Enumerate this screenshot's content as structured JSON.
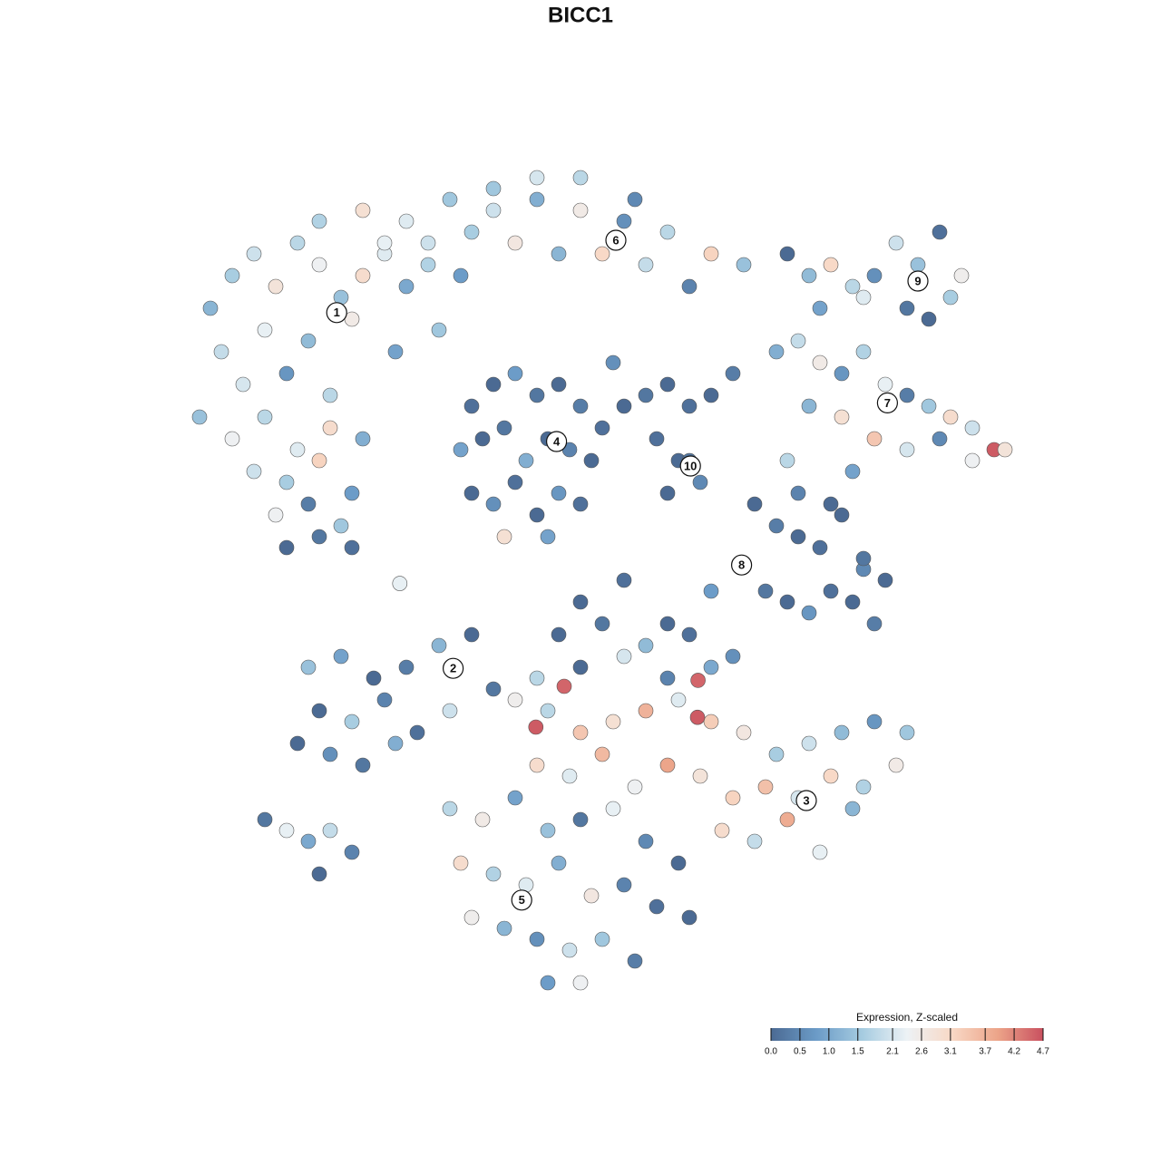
{
  "chart_data": {
    "type": "scatter",
    "title": "BICC1",
    "xlim": [
      -45,
      45
    ],
    "ylim": [
      -45,
      45
    ],
    "series": [
      {
        "x": [
          -34,
          -32,
          -30,
          -28,
          -26,
          -24,
          -22,
          -20,
          -18,
          -16,
          -14,
          -33,
          -29,
          -25,
          -21,
          -17,
          -13,
          -31,
          -27,
          -23,
          -24,
          -20,
          -16,
          -12,
          -8,
          -4,
          0,
          4,
          8,
          12,
          15,
          -18,
          -14,
          -10,
          -6,
          -2,
          2,
          6,
          10,
          -8,
          -4,
          0,
          5,
          -11,
          -35,
          -32,
          -29,
          -26,
          -23,
          -20,
          -30,
          -27,
          -24,
          -21,
          -28,
          -25,
          -22,
          -27,
          -24,
          -21,
          -10,
          -8,
          -6,
          -4,
          -2,
          0,
          2,
          -11,
          -9,
          -7,
          -5,
          -3,
          -1,
          1,
          -10,
          -8,
          -6,
          -4,
          -2,
          0,
          -7,
          -3,
          4,
          6,
          8,
          10,
          12,
          14,
          7,
          9,
          11,
          8,
          10,
          3,
          19,
          21,
          23,
          25,
          27,
          29,
          31,
          33,
          35,
          22,
          26,
          30,
          34,
          32,
          18,
          20,
          22,
          24,
          26,
          28,
          30,
          32,
          34,
          36,
          38,
          39,
          21,
          24,
          27,
          30,
          33,
          36,
          19,
          25,
          16,
          18,
          20,
          22,
          24,
          26,
          28,
          17,
          19,
          21,
          23,
          25,
          27,
          20,
          23,
          26,
          0,
          4,
          8,
          12,
          -2,
          2,
          6,
          10,
          14,
          -4,
          0,
          4,
          8,
          12,
          -25,
          -22,
          -19,
          -16,
          -13,
          -10,
          -8,
          -24,
          -21,
          -18,
          -15,
          -12,
          -26,
          -23,
          -20,
          -17,
          -6,
          -3,
          0,
          3,
          6,
          9,
          12,
          15,
          18,
          21,
          24,
          27,
          30,
          -4,
          -1,
          2,
          5,
          8,
          11,
          14,
          17,
          20,
          23,
          26,
          29,
          13,
          16,
          19,
          22,
          25,
          -1.5,
          -4.1,
          10.8,
          10.75,
          -12,
          -9,
          -6,
          -3,
          0,
          3,
          6,
          9,
          -11,
          -8,
          -5,
          -2,
          1,
          4,
          7,
          10,
          -10,
          -7,
          -4,
          -1,
          2,
          5,
          -3,
          0,
          -29,
          -27,
          -25,
          -23,
          -21,
          -24,
          -16.6
        ],
        "y": [
          25,
          28,
          30,
          27,
          31,
          29,
          26,
          28,
          30,
          27,
          29,
          21,
          23,
          22,
          24,
          21,
          23,
          18,
          19,
          17,
          33,
          34,
          33,
          35,
          34,
          35,
          34,
          33,
          32,
          30,
          29,
          31,
          31,
          32,
          31,
          30,
          30,
          29,
          27,
          36,
          37,
          37,
          35,
          28,
          15,
          13,
          15,
          12,
          14,
          13,
          10,
          9,
          11,
          8,
          6,
          7,
          5,
          3,
          4,
          3,
          16,
          18,
          19,
          17,
          18,
          16,
          14,
          12,
          13,
          14,
          11,
          13,
          12,
          11,
          8,
          7,
          9,
          6,
          8,
          7,
          4,
          4,
          16,
          17,
          18,
          16,
          17,
          19,
          13,
          11,
          9,
          8,
          11,
          20,
          30,
          28,
          29,
          27,
          28,
          31,
          29,
          32,
          28,
          25,
          26,
          25,
          26,
          24,
          21,
          22,
          20,
          19,
          21,
          18,
          17,
          16,
          15,
          14,
          12,
          12,
          16,
          15,
          13,
          12,
          13,
          11,
          11,
          10,
          7,
          5,
          4,
          3,
          6,
          1,
          0,
          -1,
          -2,
          -3,
          -1,
          -2,
          -4,
          8,
          7,
          2,
          -2,
          0,
          -4,
          -1,
          -5,
          -4,
          -6,
          -5,
          -7,
          -9,
          -8,
          -7,
          -9,
          -8,
          -8,
          -7,
          -9,
          -8,
          -6,
          -5,
          -10,
          -12,
          -13,
          -11,
          -14,
          -12,
          -15,
          -16,
          -17,
          -15,
          -11,
          -12,
          -14,
          -13,
          -12,
          -11,
          -13,
          -14,
          -16,
          -15,
          -14,
          -13,
          -14,
          -17,
          -18,
          -16,
          -19,
          -17,
          -18,
          -20,
          -19,
          -20,
          -18,
          -19,
          -17,
          -23,
          -24,
          -22,
          -25,
          -21,
          -9.75,
          -13.5,
          -9.2,
          -12.6,
          -21,
          -22,
          -20,
          -23,
          -22,
          -21,
          -24,
          -26,
          -26,
          -27,
          -28,
          -26,
          -29,
          -28,
          -30,
          -31,
          -31,
          -32,
          -33,
          -34,
          -33,
          -35,
          -37,
          -37,
          -22,
          -23,
          -24,
          -23,
          -25,
          -27,
          -0.3
        ],
        "values": [
          1.2,
          1.6,
          2.0,
          2.8,
          1.8,
          2.4,
          1.4,
          3.0,
          2.2,
          1.0,
          1.7,
          1.9,
          2.3,
          1.3,
          2.6,
          0.9,
          1.5,
          2.1,
          0.7,
          1.8,
          1.7,
          2.9,
          2.2,
          1.5,
          2.0,
          1.1,
          2.6,
          0.6,
          1.8,
          3.2,
          1.4,
          2.3,
          2.0,
          1.6,
          2.7,
          1.2,
          3.1,
          1.9,
          0.4,
          1.5,
          2.1,
          1.8,
          0.5,
          0.8,
          1.4,
          2.4,
          1.8,
          2.2,
          3.0,
          1.1,
          2.0,
          1.6,
          3.2,
          0.8,
          2.4,
          0.3,
          1.5,
          0.0,
          0.2,
          0.1,
          0.1,
          0.0,
          0.8,
          0.2,
          0.0,
          0.3,
          0.1,
          0.9,
          0.0,
          0.2,
          1.1,
          0.0,
          0.4,
          0.0,
          0.0,
          0.6,
          0.1,
          0.0,
          0.7,
          0.1,
          2.9,
          0.9,
          0.0,
          0.2,
          0.0,
          0.1,
          0.0,
          0.3,
          0.1,
          0.0,
          0.5,
          0.0,
          0.2,
          0.6,
          0.0,
          1.3,
          3.1,
          1.8,
          0.6,
          2.0,
          1.4,
          0.1,
          2.5,
          0.9,
          2.2,
          0.2,
          1.6,
          0.0,
          1.1,
          1.9,
          2.6,
          0.7,
          1.7,
          2.3,
          0.3,
          1.5,
          3.0,
          2.0,
          4.6,
          2.8,
          1.2,
          2.9,
          3.4,
          2.1,
          0.5,
          2.4,
          1.8,
          0.9,
          0.0,
          0.3,
          0.0,
          0.1,
          0.0,
          0.5,
          0.0,
          0.2,
          0.0,
          0.7,
          0.1,
          0.0,
          0.3,
          0.4,
          0.0,
          0.2,
          0.0,
          0.1,
          0.0,
          0.8,
          0.0,
          0.2,
          1.3,
          0.1,
          0.6,
          1.8,
          0.0,
          2.1,
          0.4,
          1.0,
          1.4,
          0.9,
          0.0,
          0.3,
          1.2,
          0.0,
          0.2,
          0.0,
          1.6,
          0.4,
          0.1,
          2.0,
          0.0,
          0.6,
          0.2,
          1.1,
          2.5,
          1.8,
          3.4,
          2.9,
          3.7,
          2.2,
          3.3,
          2.7,
          1.6,
          2.0,
          1.3,
          0.7,
          1.5,
          3.0,
          2.2,
          3.6,
          2.4,
          3.9,
          2.8,
          3.2,
          3.5,
          2.1,
          3.1,
          1.7,
          2.6,
          3.0,
          1.9,
          3.8,
          2.3,
          1.2,
          4.5,
          4.6,
          4.5,
          4.6,
          1.8,
          2.6,
          0.9,
          1.4,
          0.2,
          2.3,
          0.5,
          0.0,
          3.0,
          1.7,
          2.2,
          1.1,
          2.7,
          0.4,
          0.1,
          0.0,
          2.5,
          1.2,
          0.6,
          2.0,
          1.5,
          0.3,
          0.8,
          2.4,
          0.2,
          2.3,
          1.0,
          1.9,
          0.4,
          0.0,
          2.3
        ]
      }
    ],
    "cluster_labels": {
      "labels": [
        "1",
        "2",
        "3",
        "4",
        "5",
        "6",
        "7",
        "8",
        "9",
        "10"
      ],
      "x": [
        -22.4,
        -11.7,
        20.75,
        -2.2,
        -5.4,
        3.25,
        28.2,
        14.8,
        31,
        10.1
      ],
      "y": [
        24.6,
        -8.1,
        -20.25,
        12.75,
        -29.4,
        31.25,
        16.3,
        1.4,
        27.5,
        10.5
      ]
    },
    "colorbar": {
      "title": "Expression, Z-scaled",
      "clim": [
        0,
        4.7
      ],
      "colorscale": [
        "#4b6a93",
        "#6b9bc7",
        "#a5cbe0",
        "#edf2f5",
        "#f8d8c5",
        "#eca489",
        "#c9505f"
      ],
      "ticks": [
        {
          "value": 0,
          "label": "0.0"
        },
        0.5,
        {
          "value": 1,
          "label": "1.0"
        },
        1.5,
        2.1,
        2.6,
        3.1,
        3.7,
        4.2,
        4.7
      ]
    }
  }
}
